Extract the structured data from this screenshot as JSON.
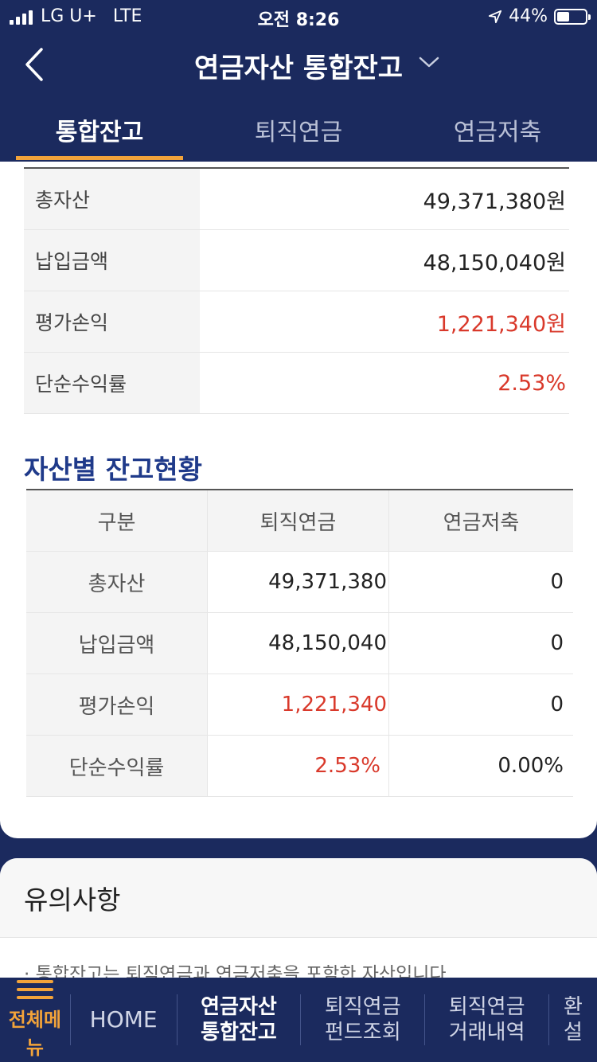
{
  "status_bar": {
    "carrier": "LG U+",
    "network": "LTE",
    "time": "오전 8:26",
    "battery": "44%"
  },
  "header": {
    "title": "연금자산 통합잔고"
  },
  "tabs": [
    {
      "label": "통합잔고",
      "active": true
    },
    {
      "label": "퇴직연금",
      "active": false
    },
    {
      "label": "연금저축",
      "active": false
    }
  ],
  "summary": [
    {
      "label": "총자산",
      "value": "49,371,380원",
      "highlight": false
    },
    {
      "label": "납입금액",
      "value": "48,150,040원",
      "highlight": false
    },
    {
      "label": "평가손익",
      "value": "1,221,340원",
      "highlight": true
    },
    {
      "label": "단순수익률",
      "value": "2.53%",
      "highlight": true
    }
  ],
  "asset_section": {
    "title": "자산별 잔고현황",
    "headers": [
      "구분",
      "퇴직연금",
      "연금저축"
    ],
    "rows": [
      {
        "label": "총자산",
        "retirement": "49,371,380",
        "savings": "0",
        "highlight": false
      },
      {
        "label": "납입금액",
        "retirement": "48,150,040",
        "savings": "0",
        "highlight": false
      },
      {
        "label": "평가손익",
        "retirement": "1,221,340",
        "savings": "0",
        "highlight": true
      },
      {
        "label": "단순수익률",
        "retirement": "2.53%",
        "savings": "0.00%",
        "highlight": true
      }
    ]
  },
  "notice": {
    "title": "유의사항",
    "text": "· 통합잔고는 퇴직연금과 연금저축을 포함한 자산입니다."
  },
  "bottom_nav": {
    "menu_label": "전체메뉴",
    "home_label": "HOME",
    "items": [
      {
        "line1": "연금자산",
        "line2": "통합잔고",
        "current": true
      },
      {
        "line1": "퇴직연금",
        "line2": "펀드조회",
        "current": false
      },
      {
        "line1": "퇴직연금",
        "line2": "거래내역",
        "current": false
      },
      {
        "line1": "환",
        "line2": "설",
        "current": false
      }
    ]
  },
  "colors": {
    "navy": "#1b2a5e",
    "accent_orange": "#f2a33a",
    "profit_red": "#d9392b",
    "section_blue": "#1f3a8a"
  }
}
